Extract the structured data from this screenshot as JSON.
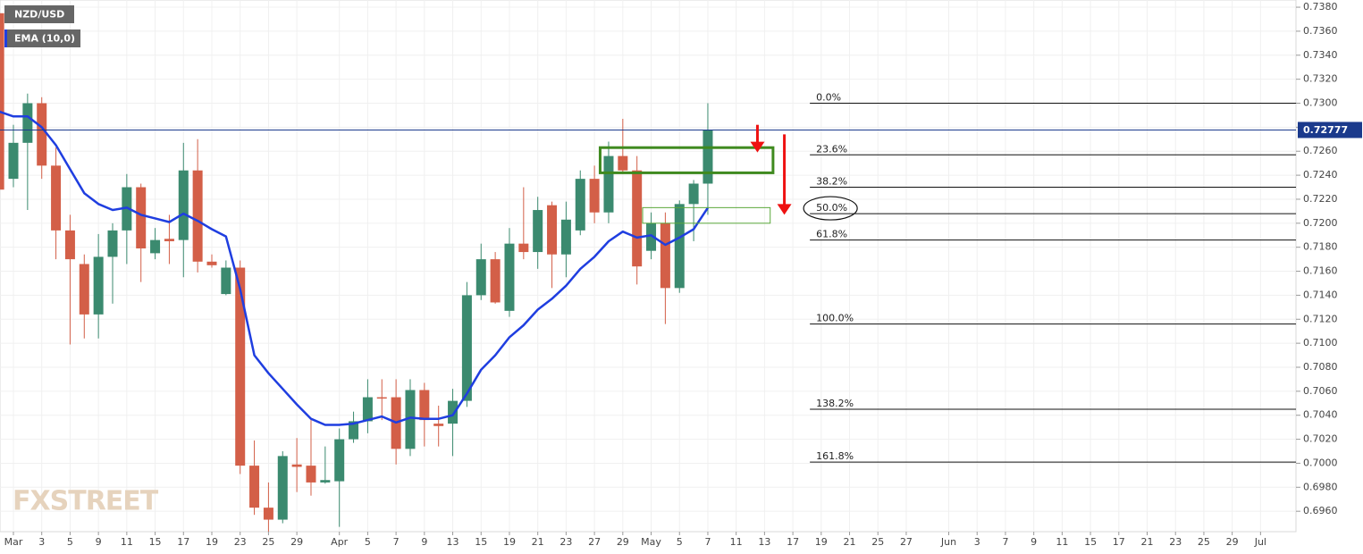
{
  "chart_data": {
    "type": "candlestick",
    "title": "NZD/USD",
    "indicator": "EMA (10,0)",
    "watermark": "FXSTREET",
    "up_color": "#3b8a6f",
    "down_color": "#d35f48",
    "ema_color": "#1f3ee0",
    "grid": true,
    "xlim": [
      -0.946,
      90.5
    ],
    "ylim": [
      0.6943,
      0.7386
    ],
    "x": [
      -1,
      0,
      1,
      2,
      3,
      4,
      5,
      6,
      7,
      8,
      9,
      10,
      11,
      12,
      13,
      14,
      15,
      16,
      17,
      18,
      19,
      20,
      21,
      22,
      23,
      24,
      25,
      26,
      27,
      28,
      29,
      30,
      31,
      32,
      33,
      34,
      35,
      36,
      37,
      38,
      39,
      40,
      41,
      42,
      43,
      44,
      45,
      46,
      47,
      48,
      49
    ],
    "open": [
      0.7375,
      0.7237,
      0.7267,
      0.73,
      0.7248,
      0.7194,
      0.7166,
      0.7124,
      0.7172,
      0.7194,
      0.723,
      0.7175,
      0.7187,
      0.7186,
      0.7244,
      0.7168,
      0.7141,
      0.7163,
      0.6998,
      0.6963,
      0.6953,
      0.6999,
      0.6998,
      0.6984,
      0.6985,
      0.702,
      0.7035,
      0.7055,
      0.7055,
      0.7012,
      0.7061,
      0.7033,
      0.7033,
      0.7052,
      0.714,
      0.717,
      0.7127,
      0.7183,
      0.7176,
      0.7215,
      0.7174,
      0.7194,
      0.7237,
      0.7209,
      0.7256,
      0.7244,
      0.7177,
      0.72,
      0.7146,
      0.7216,
      0.7233
    ],
    "high": [
      0.738,
      0.7282,
      0.7308,
      0.7305,
      0.7263,
      0.7207,
      0.7174,
      0.7191,
      0.72,
      0.7241,
      0.7233,
      0.7196,
      0.7207,
      0.7267,
      0.727,
      0.7174,
      0.7169,
      0.7169,
      0.7019,
      0.6984,
      0.701,
      0.7021,
      0.7036,
      0.7014,
      0.7029,
      0.7043,
      0.707,
      0.707,
      0.707,
      0.707,
      0.7067,
      0.7048,
      0.7062,
      0.7151,
      0.7183,
      0.7176,
      0.7196,
      0.723,
      0.7222,
      0.7218,
      0.7218,
      0.7244,
      0.7248,
      0.7268,
      0.7287,
      0.7256,
      0.7209,
      0.7209,
      0.7219,
      0.7236,
      0.73
    ],
    "low": [
      0.7225,
      0.723,
      0.7211,
      0.7237,
      0.717,
      0.7099,
      0.7104,
      0.7104,
      0.7133,
      0.7166,
      0.7151,
      0.717,
      0.7166,
      0.7155,
      0.7159,
      0.7163,
      0.714,
      0.6991,
      0.6957,
      0.6943,
      0.695,
      0.6976,
      0.6973,
      0.6983,
      0.6947,
      0.7017,
      0.7025,
      0.7036,
      0.6999,
      0.7006,
      0.7014,
      0.7014,
      0.7006,
      0.7047,
      0.7136,
      0.7133,
      0.7122,
      0.717,
      0.7162,
      0.7146,
      0.7155,
      0.719,
      0.72,
      0.72,
      0.7241,
      0.7149,
      0.717,
      0.7116,
      0.7142,
      0.7185,
      0.7207
    ],
    "close": [
      0.7228,
      0.7267,
      0.73,
      0.7248,
      0.7194,
      0.717,
      0.7124,
      0.7172,
      0.7194,
      0.723,
      0.7179,
      0.7186,
      0.7185,
      0.7244,
      0.7168,
      0.7165,
      0.7163,
      0.6998,
      0.6963,
      0.6953,
      0.7006,
      0.6997,
      0.6984,
      0.6986,
      0.702,
      0.7035,
      0.7055,
      0.7054,
      0.7012,
      0.7061,
      0.7036,
      0.7031,
      0.7052,
      0.714,
      0.717,
      0.7134,
      0.7183,
      0.7176,
      0.7211,
      0.7174,
      0.7203,
      0.7237,
      0.7209,
      0.7256,
      0.7244,
      0.7164,
      0.72,
      0.7146,
      0.7216,
      0.7233,
      0.7278
    ],
    "ema": [
      0.7293,
      0.7289,
      0.7289,
      0.728,
      0.7265,
      0.7245,
      0.7225,
      0.7216,
      0.7211,
      0.7213,
      0.7207,
      0.7204,
      0.7201,
      0.7208,
      0.7202,
      0.7195,
      0.7189,
      0.7145,
      0.709,
      0.7075,
      0.7062,
      0.7049,
      0.7037,
      0.7032,
      0.7032,
      0.7033,
      0.7036,
      0.7039,
      0.7034,
      0.7038,
      0.7037,
      0.7037,
      0.704,
      0.7058,
      0.7078,
      0.709,
      0.7105,
      0.7115,
      0.7128,
      0.7137,
      0.7148,
      0.7162,
      0.7172,
      0.7185,
      0.7193,
      0.7188,
      0.719,
      0.7182,
      0.7188,
      0.7195,
      0.7213
    ],
    "last_price": {
      "value": 0.72777,
      "label": "0.72777"
    },
    "fib_levels": [
      {
        "label": "0.0%",
        "value": 0.73
      },
      {
        "label": "23.6%",
        "value": 0.7257
      },
      {
        "label": "38.2%",
        "value": 0.723
      },
      {
        "label": "50.0%",
        "value": 0.7208
      },
      {
        "label": "61.8%",
        "value": 0.7186
      },
      {
        "label": "100.0%",
        "value": 0.7116
      },
      {
        "label": "138.2%",
        "value": 0.7045
      },
      {
        "label": "161.8%",
        "value": 0.7001
      }
    ],
    "fib_start": 56.2,
    "boxes": [
      {
        "x": [
          41.4,
          53.6
        ],
        "y": [
          0.7242,
          0.7263
        ],
        "color": "#3f8a1f",
        "width": 3
      },
      {
        "x": [
          44.4,
          53.4
        ],
        "y": [
          0.72,
          0.7213
        ],
        "color": "#5aa83a",
        "width": 1
      }
    ],
    "arrows": [
      {
        "x": 52.5,
        "y": [
          0.7282,
          0.7259
        ],
        "color": "#ee1111"
      },
      {
        "x": 54.4,
        "y": [
          0.7274,
          0.7207
        ],
        "color": "#ee1111"
      }
    ],
    "xticks": [
      {
        "value": 0,
        "label": "Mar"
      },
      {
        "value": 2,
        "label": "3"
      },
      {
        "value": 4,
        "label": "5"
      },
      {
        "value": 6,
        "label": "9"
      },
      {
        "value": 8,
        "label": "11"
      },
      {
        "value": 10,
        "label": "15"
      },
      {
        "value": 12,
        "label": "17"
      },
      {
        "value": 14,
        "label": "19"
      },
      {
        "value": 16,
        "label": "23"
      },
      {
        "value": 18,
        "label": "25"
      },
      {
        "value": 20,
        "label": "29"
      },
      {
        "value": 23,
        "label": "Apr"
      },
      {
        "value": 25,
        "label": "5"
      },
      {
        "value": 27,
        "label": "7"
      },
      {
        "value": 29,
        "label": "9"
      },
      {
        "value": 31,
        "label": "13"
      },
      {
        "value": 33,
        "label": "15"
      },
      {
        "value": 35,
        "label": "19"
      },
      {
        "value": 37,
        "label": "21"
      },
      {
        "value": 39,
        "label": "23"
      },
      {
        "value": 41,
        "label": "27"
      },
      {
        "value": 43,
        "label": "29"
      },
      {
        "value": 45,
        "label": "May"
      },
      {
        "value": 47,
        "label": "5"
      },
      {
        "value": 49,
        "label": "7"
      },
      {
        "value": 51,
        "label": "11"
      },
      {
        "value": 53,
        "label": "13"
      },
      {
        "value": 55,
        "label": "17"
      },
      {
        "value": 57,
        "label": "19"
      },
      {
        "value": 59,
        "label": "21"
      },
      {
        "value": 61,
        "label": "25"
      },
      {
        "value": 63,
        "label": "27"
      },
      {
        "value": 66,
        "label": "Jun"
      },
      {
        "value": 68,
        "label": "3"
      },
      {
        "value": 70,
        "label": "7"
      },
      {
        "value": 72,
        "label": "9"
      },
      {
        "value": 74,
        "label": "11"
      },
      {
        "value": 76,
        "label": "15"
      },
      {
        "value": 78,
        "label": "17"
      },
      {
        "value": 80,
        "label": "21"
      },
      {
        "value": 82,
        "label": "23"
      },
      {
        "value": 84,
        "label": "25"
      },
      {
        "value": 86,
        "label": "29"
      },
      {
        "value": 88,
        "label": "Jul"
      }
    ],
    "yticks": [
      {
        "value": 0.696,
        "label": "0.6960"
      },
      {
        "value": 0.698,
        "label": "0.6980"
      },
      {
        "value": 0.7,
        "label": "0.7000"
      },
      {
        "value": 0.702,
        "label": "0.7020"
      },
      {
        "value": 0.704,
        "label": "0.7040"
      },
      {
        "value": 0.706,
        "label": "0.7060"
      },
      {
        "value": 0.708,
        "label": "0.7080"
      },
      {
        "value": 0.71,
        "label": "0.7100"
      },
      {
        "value": 0.712,
        "label": "0.7120"
      },
      {
        "value": 0.714,
        "label": "0.7140"
      },
      {
        "value": 0.716,
        "label": "0.7160"
      },
      {
        "value": 0.718,
        "label": "0.7180"
      },
      {
        "value": 0.72,
        "label": "0.7200"
      },
      {
        "value": 0.722,
        "label": "0.7220"
      },
      {
        "value": 0.724,
        "label": "0.7240"
      },
      {
        "value": 0.726,
        "label": "0.7260"
      },
      {
        "value": 0.728,
        "label": "0.7280"
      },
      {
        "value": 0.73,
        "label": "0.7300"
      },
      {
        "value": 0.732,
        "label": "0.7320"
      },
      {
        "value": 0.734,
        "label": "0.7340"
      },
      {
        "value": 0.736,
        "label": "0.7360"
      },
      {
        "value": 0.738,
        "label": "0.7380"
      }
    ]
  }
}
